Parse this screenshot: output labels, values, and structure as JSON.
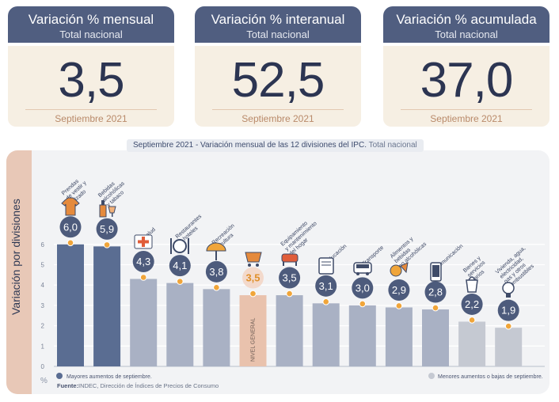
{
  "kpis": [
    {
      "title": "Variación % mensual",
      "subtitle": "Total nacional",
      "value": "3,5",
      "date": "Septiembre 2021"
    },
    {
      "title": "Variación % interanual",
      "subtitle": "Total nacional",
      "value": "52,5",
      "date": "Septiembre 2021"
    },
    {
      "title": "Variación % acumulada",
      "subtitle": "Total nacional",
      "value": "37,0",
      "date": "Septiembre 2021"
    }
  ],
  "chart_title_main": "Septiembre 2021 - Variación mensual de las 12 divisiones del IPC.",
  "chart_title_suffix": "Total nacional",
  "chart_data": {
    "type": "bar",
    "title": "Septiembre 2021 - Variación mensual de las 12 divisiones del IPC. Total nacional",
    "ylabel": "Variación por divisiones",
    "yunit": "%",
    "ylim": [
      0,
      7
    ],
    "yticks": [
      0,
      1,
      2,
      3,
      4,
      5,
      6
    ],
    "categories": [
      "Prendas de vestir y calzado",
      "Bebidas alcohólicas y tabaco",
      "Salud",
      "Restaurantes y hoteles",
      "Recreación y cultura",
      "NIVEL GENERAL",
      "Equipamiento y mantenimiento del hogar",
      "Educación",
      "Transporte",
      "Alimentos y bebidas no alcohólicas",
      "Comunicación",
      "Bienes y servicios varios",
      "Vivienda, agua, electricidad, gas y otros combustibles"
    ],
    "values": [
      6.0,
      5.9,
      4.3,
      4.1,
      3.8,
      3.5,
      3.5,
      3.1,
      3.0,
      2.9,
      2.8,
      2.2,
      1.9
    ],
    "value_labels": [
      "6,0",
      "5,9",
      "4,3",
      "4,1",
      "3,8",
      "3,5",
      "3,5",
      "3,1",
      "3,0",
      "2,9",
      "2,8",
      "2,2",
      "1,9"
    ],
    "label_lines": [
      [
        "Prendas",
        "de vestir y",
        "calzado"
      ],
      [
        "Bebidas",
        "alcohólicas",
        "y tabaco"
      ],
      [
        "Salud"
      ],
      [
        "Restaurantes",
        "y hoteles"
      ],
      [
        "Recreación",
        "y cultura"
      ],
      [],
      [
        "Equipamiento",
        "y mantenimiento",
        "del hogar"
      ],
      [
        "Educación"
      ],
      [
        "Transporte"
      ],
      [
        "Alimentos y",
        "bebidas",
        "no alcohólicas"
      ],
      [
        "Comunicación"
      ],
      [
        "Bienes y",
        "servicios",
        "varios"
      ],
      [
        "Vivienda, agua,",
        "electricidad,",
        "gas y otros",
        "combustibles"
      ]
    ],
    "bar_groups": [
      "mayores",
      "mayores",
      "otros",
      "otros",
      "otros",
      "general",
      "otros",
      "otros",
      "otros",
      "otros",
      "otros",
      "menores",
      "menores"
    ],
    "general_bar_label": "NIVEL GENERAL",
    "colors": {
      "mayores": "#5a6d92",
      "otros": "#a9b1c4",
      "general": "#e9c2ad",
      "menores": "#c5c9d2",
      "marker": "#f0a53a",
      "gridline": "#ffffff"
    },
    "icons": [
      "shirt-icon",
      "bottle-glass-icon",
      "first-aid-icon",
      "cutlery-icon",
      "beach-umbrella-icon",
      "cart-icon",
      "furniture-icon",
      "book-icon",
      "bus-icon",
      "grocery-icon",
      "phone-icon",
      "shopping-icon",
      "lightbulb-icon"
    ]
  },
  "legend": {
    "mayores": "Mayores aumentos de septiembre.",
    "menores": "Menores aumentos o bajas de septiembre."
  },
  "source_label": "Fuente:",
  "source_text": "INDEC, Dirección de Índices de Precios de Consumo"
}
